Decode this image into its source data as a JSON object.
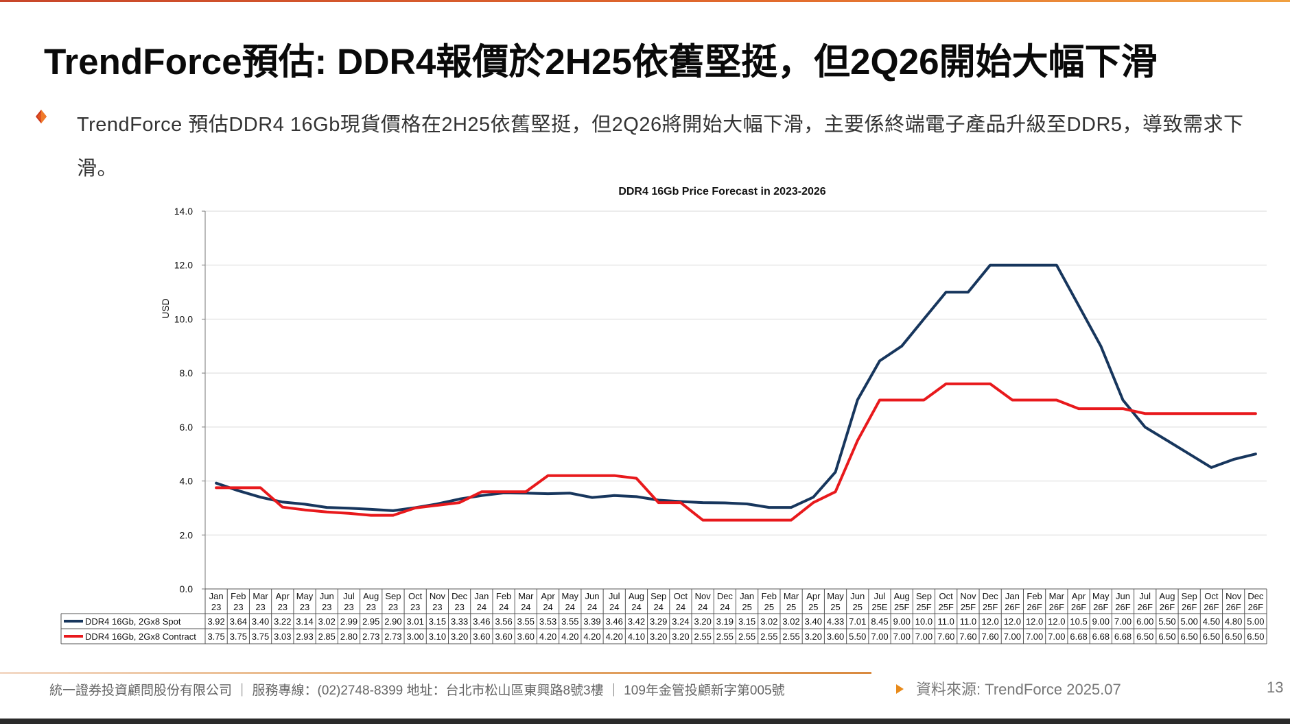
{
  "slide": {
    "title": "TrendForce預估: DDR4報價於2H25依舊堅挺，但2Q26開始大幅下滑",
    "bullet": "TrendForce 預估DDR4 16Gb現貨價格在2H25依舊堅挺，但2Q26將開始大幅下滑，主要係終端電子產品升級至DDR5，導致需求下滑。",
    "footer": "統一證券投資顧問股份有限公司 ｜ 服務專線：(02)2748-8399 地址：台北市松山區東興路8號3樓 ｜ 109年金管投顧新字第005號",
    "source": "資料來源: TrendForce 2025.07",
    "page_number": "13",
    "accent_colors": {
      "bullet": "#e0531f",
      "source_arrow": "#e88a1a",
      "top_rule": "#d4572a"
    }
  },
  "chart_data": {
    "type": "line",
    "title": "DDR4 16Gb Price Forecast in 2023-2026",
    "ylabel": "USD",
    "xlabel": "",
    "ylim": [
      0,
      14
    ],
    "yticks": [
      "0.0",
      "2.0",
      "4.0",
      "6.0",
      "8.0",
      "10.0",
      "12.0",
      "14.0"
    ],
    "grid": true,
    "legend": "data-table",
    "categories": [
      [
        "Jan",
        "23"
      ],
      [
        "Feb",
        "23"
      ],
      [
        "Mar",
        "23"
      ],
      [
        "Apr",
        "23"
      ],
      [
        "May",
        "23"
      ],
      [
        "Jun",
        "23"
      ],
      [
        "Jul",
        "23"
      ],
      [
        "Aug",
        "23"
      ],
      [
        "Sep",
        "23"
      ],
      [
        "Oct",
        "23"
      ],
      [
        "Nov",
        "23"
      ],
      [
        "Dec",
        "23"
      ],
      [
        "Jan",
        "24"
      ],
      [
        "Feb",
        "24"
      ],
      [
        "Mar",
        "24"
      ],
      [
        "Apr",
        "24"
      ],
      [
        "May",
        "24"
      ],
      [
        "Jun",
        "24"
      ],
      [
        "Jul",
        "24"
      ],
      [
        "Aug",
        "24"
      ],
      [
        "Sep",
        "24"
      ],
      [
        "Oct",
        "24"
      ],
      [
        "Nov",
        "24"
      ],
      [
        "Dec",
        "24"
      ],
      [
        "Jan",
        "25"
      ],
      [
        "Feb",
        "25"
      ],
      [
        "Mar",
        "25"
      ],
      [
        "Apr",
        "25"
      ],
      [
        "May",
        "25"
      ],
      [
        "Jun",
        "25"
      ],
      [
        "Jul",
        "25E"
      ],
      [
        "Aug",
        "25F"
      ],
      [
        "Sep",
        "25F"
      ],
      [
        "Oct",
        "25F"
      ],
      [
        "Nov",
        "25F"
      ],
      [
        "Dec",
        "25F"
      ],
      [
        "Jan",
        "26F"
      ],
      [
        "Feb",
        "26F"
      ],
      [
        "Mar",
        "26F"
      ],
      [
        "Apr",
        "26F"
      ],
      [
        "May",
        "26F"
      ],
      [
        "Jun",
        "26F"
      ],
      [
        "Jul",
        "26F"
      ],
      [
        "Aug",
        "26F"
      ],
      [
        "Sep",
        "26F"
      ],
      [
        "Oct",
        "26F"
      ],
      [
        "Nov",
        "26F"
      ],
      [
        "Dec",
        "26F"
      ]
    ],
    "series": [
      {
        "name": "DDR4 16Gb, 2Gx8 Spot",
        "color": "#17365d",
        "values": [
          3.92,
          3.64,
          3.4,
          3.22,
          3.14,
          3.02,
          2.99,
          2.95,
          2.9,
          3.01,
          3.15,
          3.33,
          3.46,
          3.56,
          3.55,
          3.53,
          3.55,
          3.39,
          3.46,
          3.42,
          3.29,
          3.24,
          3.2,
          3.19,
          3.15,
          3.02,
          3.02,
          3.4,
          4.33,
          7.01,
          8.45,
          9.0,
          10.0,
          11.0,
          11.0,
          12.0,
          12.0,
          12.0,
          12.0,
          10.5,
          9.0,
          7.0,
          6.0,
          5.5,
          5.0,
          4.5,
          4.8,
          5.0
        ],
        "labels": [
          "3.92",
          "3.64",
          "3.40",
          "3.22",
          "3.14",
          "3.02",
          "2.99",
          "2.95",
          "2.90",
          "3.01",
          "3.15",
          "3.33",
          "3.46",
          "3.56",
          "3.55",
          "3.53",
          "3.55",
          "3.39",
          "3.46",
          "3.42",
          "3.29",
          "3.24",
          "3.20",
          "3.19",
          "3.15",
          "3.02",
          "3.02",
          "3.40",
          "4.33",
          "7.01",
          "8.45",
          "9.00",
          "10.0",
          "11.0",
          "11.0",
          "12.0",
          "12.0",
          "12.0",
          "12.0",
          "10.5",
          "9.00",
          "7.00",
          "6.00",
          "5.50",
          "5.00",
          "4.50",
          "4.80",
          "5.00"
        ]
      },
      {
        "name": "DDR4 16Gb, 2Gx8 Contract",
        "color": "#e8191c",
        "values": [
          3.75,
          3.75,
          3.75,
          3.03,
          2.93,
          2.85,
          2.8,
          2.73,
          2.73,
          3.0,
          3.1,
          3.2,
          3.6,
          3.6,
          3.6,
          4.2,
          4.2,
          4.2,
          4.2,
          4.1,
          3.2,
          3.2,
          2.55,
          2.55,
          2.55,
          2.55,
          2.55,
          3.2,
          3.6,
          5.5,
          7.0,
          7.0,
          7.0,
          7.6,
          7.6,
          7.6,
          7.0,
          7.0,
          7.0,
          6.68,
          6.68,
          6.68,
          6.5,
          6.5,
          6.5,
          6.5,
          6.5,
          6.5
        ],
        "labels": [
          "3.75",
          "3.75",
          "3.75",
          "3.03",
          "2.93",
          "2.85",
          "2.80",
          "2.73",
          "2.73",
          "3.00",
          "3.10",
          "3.20",
          "3.60",
          "3.60",
          "3.60",
          "4.20",
          "4.20",
          "4.20",
          "4.20",
          "4.10",
          "3.20",
          "3.20",
          "2.55",
          "2.55",
          "2.55",
          "2.55",
          "2.55",
          "3.20",
          "3.60",
          "5.50",
          "7.00",
          "7.00",
          "7.00",
          "7.60",
          "7.60",
          "7.60",
          "7.00",
          "7.00",
          "7.00",
          "6.68",
          "6.68",
          "6.68",
          "6.50",
          "6.50",
          "6.50",
          "6.50",
          "6.50",
          "6.50"
        ]
      }
    ]
  }
}
